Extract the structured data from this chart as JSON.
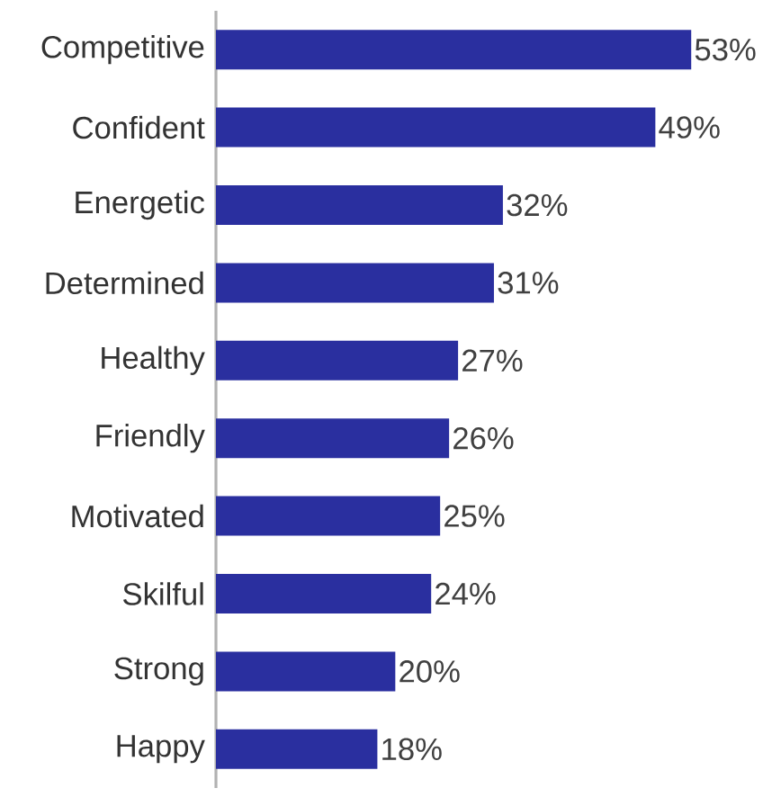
{
  "chart_data": {
    "type": "bar",
    "orientation": "horizontal",
    "categories": [
      "Competitive",
      "Confident",
      "Energetic",
      "Determined",
      "Healthy",
      "Friendly",
      "Motivated",
      "Skilful",
      "Strong",
      "Happy"
    ],
    "values": [
      53,
      49,
      32,
      31,
      27,
      26,
      25,
      24,
      20,
      18
    ],
    "value_labels": [
      "53%",
      "49%",
      "32%",
      "31%",
      "27%",
      "26%",
      "25%",
      "24%",
      "20%",
      "18%"
    ],
    "color": "#2a2f9f"
  }
}
